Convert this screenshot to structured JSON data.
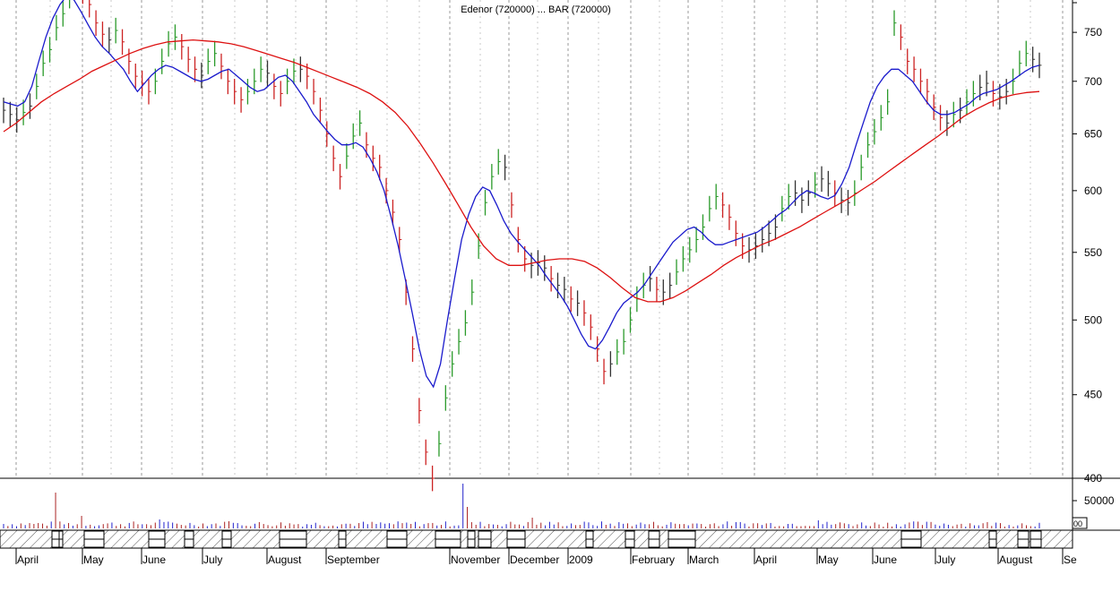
{
  "chart_title": "Edenor (720000) ... BAR (720000)",
  "chart_data": {
    "type": "bar",
    "title": "Edenor (720000) ... BAR (720000)",
    "price_axis": {
      "ticks": [
        400,
        450,
        500,
        550,
        600,
        650,
        700,
        750
      ],
      "ylim": [
        400,
        785
      ],
      "scale": "log"
    },
    "volume_axis": {
      "ticks": [
        50000
      ],
      "cut_label": "00"
    },
    "months": [
      "April",
      "May",
      "June",
      "July",
      "August",
      "September",
      "November",
      "December",
      "2009",
      "February",
      "March",
      "April",
      "May",
      "June",
      "July",
      "August",
      "Se"
    ],
    "price_series": [
      {
        "name": "price",
        "values": [
          672,
          668,
          663,
          670,
          676,
          695,
          718,
          732,
          755,
          770,
          790,
          805,
          795,
          780,
          760,
          748,
          742,
          752,
          740,
          720,
          705,
          698,
          690,
          700,
          720,
          738,
          745,
          735,
          722,
          712,
          706,
          720,
          728,
          715,
          700,
          690,
          682,
          690,
          700,
          712,
          708,
          695,
          688,
          700,
          710,
          712,
          705,
          690,
          672,
          650,
          628,
          612,
          630,
          648,
          660,
          640,
          628,
          620,
          600,
          582,
          560,
          520,
          480,
          440,
          415,
          400,
          420,
          448,
          470,
          485,
          498,
          520,
          555,
          590,
          612,
          625,
          620,
          588,
          560,
          545,
          540,
          542,
          538,
          530,
          525,
          522,
          515,
          512,
          505,
          495,
          480,
          465,
          470,
          478,
          485,
          500,
          515,
          525,
          530,
          522,
          520,
          525,
          535,
          545,
          552,
          560,
          570,
          585,
          595,
          588,
          578,
          565,
          555,
          552,
          555,
          560,
          565,
          570,
          585,
          595,
          598,
          592,
          598,
          605,
          610,
          606,
          598,
          592,
          590,
          598,
          620,
          640,
          652,
          665,
          680,
          760,
          745,
          720,
          712,
          700,
          690,
          675,
          665,
          660,
          668,
          672,
          680,
          688,
          694,
          698,
          688,
          685,
          690,
          700,
          718,
          728,
          722,
          716
        ]
      },
      {
        "name": "ma-short",
        "values": [
          680,
          678,
          676,
          680,
          695,
          720,
          745,
          765,
          780,
          790,
          785,
          772,
          758,
          745,
          735,
          728,
          720,
          712,
          700,
          690,
          698,
          706,
          712,
          716,
          714,
          710,
          706,
          702,
          700,
          702,
          706,
          710,
          712,
          706,
          700,
          694,
          690,
          692,
          698,
          704,
          706,
          700,
          690,
          680,
          668,
          660,
          652,
          645,
          640,
          640,
          642,
          638,
          628,
          616,
          600,
          578,
          555,
          530,
          505,
          480,
          462,
          455,
          470,
          500,
          530,
          560,
          580,
          595,
          603,
          600,
          588,
          575,
          565,
          558,
          552,
          546,
          540,
          532,
          525,
          518,
          510,
          500,
          490,
          482,
          480,
          486,
          495,
          505,
          512,
          516,
          520,
          526,
          534,
          542,
          550,
          558,
          563,
          568,
          570,
          566,
          560,
          556,
          556,
          558,
          560,
          562,
          564,
          566,
          570,
          575,
          580,
          584,
          590,
          596,
          600,
          598,
          595,
          593,
          596,
          606,
          620,
          640,
          660,
          680,
          695,
          705,
          712,
          712,
          706,
          700,
          690,
          680,
          672,
          668,
          668,
          670,
          674,
          678,
          684,
          688,
          690,
          692,
          696,
          700,
          705,
          710,
          714,
          716
        ]
      },
      {
        "name": "ma-long",
        "values": [
          652,
          660,
          670,
          680,
          688,
          695,
          702,
          710,
          716,
          722,
          728,
          733,
          737,
          740,
          741,
          742,
          741,
          740,
          738,
          735,
          731,
          727,
          723,
          719,
          714,
          709,
          704,
          699,
          694,
          688,
          680,
          670,
          657,
          641,
          624,
          606,
          588,
          570,
          555,
          545,
          540,
          540,
          542,
          544,
          545,
          545,
          543,
          538,
          531,
          523,
          516,
          513,
          513,
          516,
          521,
          527,
          533,
          540,
          546,
          551,
          556,
          560,
          565,
          570,
          576,
          582,
          588,
          594,
          601,
          608,
          616,
          624,
          632,
          640,
          648,
          657,
          666,
          673,
          679,
          684,
          687,
          689,
          690
        ]
      }
    ],
    "volume_note": "daily volume bars; spikes near 55000 in April and November"
  }
}
